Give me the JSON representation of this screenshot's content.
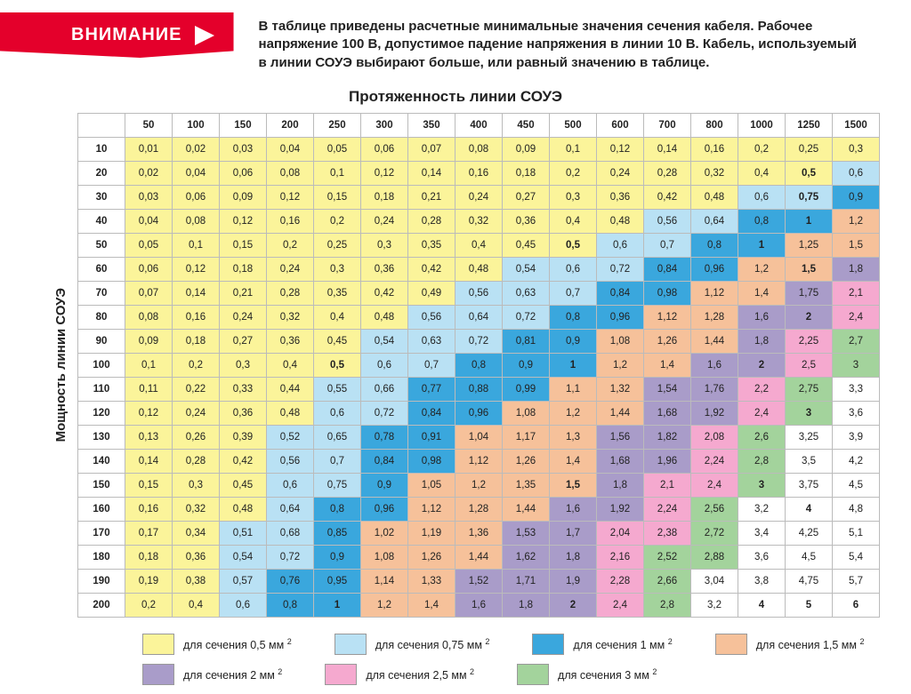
{
  "banner": {
    "label": "ВНИМАНИЕ",
    "text": "В таблице приведены расчетные минимальные значения сечения кабеля. Рабочее напряжение 100 В, допустимое падение напряжения в линии 10 В. Кабель, используемый в линии СОУЭ выбирают больше, или равный значению в таблице."
  },
  "chart": {
    "title": "Протяженность линии СОУЭ",
    "ylabel": "Мощность линии СОУЭ",
    "col_headers": [
      "50",
      "100",
      "150",
      "200",
      "250",
      "300",
      "350",
      "400",
      "450",
      "500",
      "600",
      "700",
      "800",
      "1000",
      "1250",
      "1500"
    ],
    "row_headers": [
      "10",
      "20",
      "30",
      "40",
      "50",
      "60",
      "70",
      "80",
      "90",
      "100",
      "110",
      "120",
      "130",
      "140",
      "150",
      "160",
      "170",
      "180",
      "190",
      "200"
    ],
    "colors": {
      "c05": "#fbf49a",
      "c075": "#b9e1f4",
      "c1": "#3aa7dd",
      "c15": "#f6c19a",
      "c2": "#a99cc9",
      "c25": "#f5a9cf",
      "c3": "#a3d39c",
      "cnone": "#ffffff"
    },
    "cells": [
      [
        [
          "0,01",
          "c05"
        ],
        [
          "0,02",
          "c05"
        ],
        [
          "0,03",
          "c05"
        ],
        [
          "0,04",
          "c05"
        ],
        [
          "0,05",
          "c05"
        ],
        [
          "0,06",
          "c05"
        ],
        [
          "0,07",
          "c05"
        ],
        [
          "0,08",
          "c05"
        ],
        [
          "0,09",
          "c05"
        ],
        [
          "0,1",
          "c05"
        ],
        [
          "0,12",
          "c05"
        ],
        [
          "0,14",
          "c05"
        ],
        [
          "0,16",
          "c05"
        ],
        [
          "0,2",
          "c05"
        ],
        [
          "0,25",
          "c05"
        ],
        [
          "0,3",
          "c05"
        ]
      ],
      [
        [
          "0,02",
          "c05"
        ],
        [
          "0,04",
          "c05"
        ],
        [
          "0,06",
          "c05"
        ],
        [
          "0,08",
          "c05"
        ],
        [
          "0,1",
          "c05"
        ],
        [
          "0,12",
          "c05"
        ],
        [
          "0,14",
          "c05"
        ],
        [
          "0,16",
          "c05"
        ],
        [
          "0,18",
          "c05"
        ],
        [
          "0,2",
          "c05"
        ],
        [
          "0,24",
          "c05"
        ],
        [
          "0,28",
          "c05"
        ],
        [
          "0,32",
          "c05"
        ],
        [
          "0,4",
          "c05"
        ],
        [
          "0,5",
          "c05",
          1
        ],
        [
          "0,6",
          "c075"
        ]
      ],
      [
        [
          "0,03",
          "c05"
        ],
        [
          "0,06",
          "c05"
        ],
        [
          "0,09",
          "c05"
        ],
        [
          "0,12",
          "c05"
        ],
        [
          "0,15",
          "c05"
        ],
        [
          "0,18",
          "c05"
        ],
        [
          "0,21",
          "c05"
        ],
        [
          "0,24",
          "c05"
        ],
        [
          "0,27",
          "c05"
        ],
        [
          "0,3",
          "c05"
        ],
        [
          "0,36",
          "c05"
        ],
        [
          "0,42",
          "c05"
        ],
        [
          "0,48",
          "c05"
        ],
        [
          "0,6",
          "c075"
        ],
        [
          "0,75",
          "c075",
          1
        ],
        [
          "0,9",
          "c1"
        ]
      ],
      [
        [
          "0,04",
          "c05"
        ],
        [
          "0,08",
          "c05"
        ],
        [
          "0,12",
          "c05"
        ],
        [
          "0,16",
          "c05"
        ],
        [
          "0,2",
          "c05"
        ],
        [
          "0,24",
          "c05"
        ],
        [
          "0,28",
          "c05"
        ],
        [
          "0,32",
          "c05"
        ],
        [
          "0,36",
          "c05"
        ],
        [
          "0,4",
          "c05"
        ],
        [
          "0,48",
          "c05"
        ],
        [
          "0,56",
          "c075"
        ],
        [
          "0,64",
          "c075"
        ],
        [
          "0,8",
          "c1"
        ],
        [
          "1",
          "c1",
          1
        ],
        [
          "1,2",
          "c15"
        ]
      ],
      [
        [
          "0,05",
          "c05"
        ],
        [
          "0,1",
          "c05"
        ],
        [
          "0,15",
          "c05"
        ],
        [
          "0,2",
          "c05"
        ],
        [
          "0,25",
          "c05"
        ],
        [
          "0,3",
          "c05"
        ],
        [
          "0,35",
          "c05"
        ],
        [
          "0,4",
          "c05"
        ],
        [
          "0,45",
          "c05"
        ],
        [
          "0,5",
          "c05",
          1
        ],
        [
          "0,6",
          "c075"
        ],
        [
          "0,7",
          "c075"
        ],
        [
          "0,8",
          "c1"
        ],
        [
          "1",
          "c1",
          1
        ],
        [
          "1,25",
          "c15"
        ],
        [
          "1,5",
          "c15"
        ]
      ],
      [
        [
          "0,06",
          "c05"
        ],
        [
          "0,12",
          "c05"
        ],
        [
          "0,18",
          "c05"
        ],
        [
          "0,24",
          "c05"
        ],
        [
          "0,3",
          "c05"
        ],
        [
          "0,36",
          "c05"
        ],
        [
          "0,42",
          "c05"
        ],
        [
          "0,48",
          "c05"
        ],
        [
          "0,54",
          "c075"
        ],
        [
          "0,6",
          "c075"
        ],
        [
          "0,72",
          "c075"
        ],
        [
          "0,84",
          "c1"
        ],
        [
          "0,96",
          "c1"
        ],
        [
          "1,2",
          "c15"
        ],
        [
          "1,5",
          "c15",
          1
        ],
        [
          "1,8",
          "c2"
        ]
      ],
      [
        [
          "0,07",
          "c05"
        ],
        [
          "0,14",
          "c05"
        ],
        [
          "0,21",
          "c05"
        ],
        [
          "0,28",
          "c05"
        ],
        [
          "0,35",
          "c05"
        ],
        [
          "0,42",
          "c05"
        ],
        [
          "0,49",
          "c05"
        ],
        [
          "0,56",
          "c075"
        ],
        [
          "0,63",
          "c075"
        ],
        [
          "0,7",
          "c075"
        ],
        [
          "0,84",
          "c1"
        ],
        [
          "0,98",
          "c1"
        ],
        [
          "1,12",
          "c15"
        ],
        [
          "1,4",
          "c15"
        ],
        [
          "1,75",
          "c2"
        ],
        [
          "2,1",
          "c25"
        ]
      ],
      [
        [
          "0,08",
          "c05"
        ],
        [
          "0,16",
          "c05"
        ],
        [
          "0,24",
          "c05"
        ],
        [
          "0,32",
          "c05"
        ],
        [
          "0,4",
          "c05"
        ],
        [
          "0,48",
          "c05"
        ],
        [
          "0,56",
          "c075"
        ],
        [
          "0,64",
          "c075"
        ],
        [
          "0,72",
          "c075"
        ],
        [
          "0,8",
          "c1"
        ],
        [
          "0,96",
          "c1"
        ],
        [
          "1,12",
          "c15"
        ],
        [
          "1,28",
          "c15"
        ],
        [
          "1,6",
          "c2"
        ],
        [
          "2",
          "c2",
          1
        ],
        [
          "2,4",
          "c25"
        ]
      ],
      [
        [
          "0,09",
          "c05"
        ],
        [
          "0,18",
          "c05"
        ],
        [
          "0,27",
          "c05"
        ],
        [
          "0,36",
          "c05"
        ],
        [
          "0,45",
          "c05"
        ],
        [
          "0,54",
          "c075"
        ],
        [
          "0,63",
          "c075"
        ],
        [
          "0,72",
          "c075"
        ],
        [
          "0,81",
          "c1"
        ],
        [
          "0,9",
          "c1"
        ],
        [
          "1,08",
          "c15"
        ],
        [
          "1,26",
          "c15"
        ],
        [
          "1,44",
          "c15"
        ],
        [
          "1,8",
          "c2"
        ],
        [
          "2,25",
          "c25"
        ],
        [
          "2,7",
          "c3"
        ]
      ],
      [
        [
          "0,1",
          "c05"
        ],
        [
          "0,2",
          "c05"
        ],
        [
          "0,3",
          "c05"
        ],
        [
          "0,4",
          "c05"
        ],
        [
          "0,5",
          "c05",
          1
        ],
        [
          "0,6",
          "c075"
        ],
        [
          "0,7",
          "c075"
        ],
        [
          "0,8",
          "c1"
        ],
        [
          "0,9",
          "c1"
        ],
        [
          "1",
          "c1",
          1
        ],
        [
          "1,2",
          "c15"
        ],
        [
          "1,4",
          "c15"
        ],
        [
          "1,6",
          "c2"
        ],
        [
          "2",
          "c2",
          1
        ],
        [
          "2,5",
          "c25"
        ],
        [
          "3",
          "c3"
        ]
      ],
      [
        [
          "0,11",
          "c05"
        ],
        [
          "0,22",
          "c05"
        ],
        [
          "0,33",
          "c05"
        ],
        [
          "0,44",
          "c05"
        ],
        [
          "0,55",
          "c075"
        ],
        [
          "0,66",
          "c075"
        ],
        [
          "0,77",
          "c1"
        ],
        [
          "0,88",
          "c1"
        ],
        [
          "0,99",
          "c1"
        ],
        [
          "1,1",
          "c15"
        ],
        [
          "1,32",
          "c15"
        ],
        [
          "1,54",
          "c2"
        ],
        [
          "1,76",
          "c2"
        ],
        [
          "2,2",
          "c25"
        ],
        [
          "2,75",
          "c3"
        ],
        [
          "3,3",
          "cnone"
        ]
      ],
      [
        [
          "0,12",
          "c05"
        ],
        [
          "0,24",
          "c05"
        ],
        [
          "0,36",
          "c05"
        ],
        [
          "0,48",
          "c05"
        ],
        [
          "0,6",
          "c075"
        ],
        [
          "0,72",
          "c075"
        ],
        [
          "0,84",
          "c1"
        ],
        [
          "0,96",
          "c1"
        ],
        [
          "1,08",
          "c15"
        ],
        [
          "1,2",
          "c15"
        ],
        [
          "1,44",
          "c15"
        ],
        [
          "1,68",
          "c2"
        ],
        [
          "1,92",
          "c2"
        ],
        [
          "2,4",
          "c25"
        ],
        [
          "3",
          "c3",
          1
        ],
        [
          "3,6",
          "cnone"
        ]
      ],
      [
        [
          "0,13",
          "c05"
        ],
        [
          "0,26",
          "c05"
        ],
        [
          "0,39",
          "c05"
        ],
        [
          "0,52",
          "c075"
        ],
        [
          "0,65",
          "c075"
        ],
        [
          "0,78",
          "c1"
        ],
        [
          "0,91",
          "c1"
        ],
        [
          "1,04",
          "c15"
        ],
        [
          "1,17",
          "c15"
        ],
        [
          "1,3",
          "c15"
        ],
        [
          "1,56",
          "c2"
        ],
        [
          "1,82",
          "c2"
        ],
        [
          "2,08",
          "c25"
        ],
        [
          "2,6",
          "c3"
        ],
        [
          "3,25",
          "cnone"
        ],
        [
          "3,9",
          "cnone"
        ]
      ],
      [
        [
          "0,14",
          "c05"
        ],
        [
          "0,28",
          "c05"
        ],
        [
          "0,42",
          "c05"
        ],
        [
          "0,56",
          "c075"
        ],
        [
          "0,7",
          "c075"
        ],
        [
          "0,84",
          "c1"
        ],
        [
          "0,98",
          "c1"
        ],
        [
          "1,12",
          "c15"
        ],
        [
          "1,26",
          "c15"
        ],
        [
          "1,4",
          "c15"
        ],
        [
          "1,68",
          "c2"
        ],
        [
          "1,96",
          "c2"
        ],
        [
          "2,24",
          "c25"
        ],
        [
          "2,8",
          "c3"
        ],
        [
          "3,5",
          "cnone"
        ],
        [
          "4,2",
          "cnone"
        ]
      ],
      [
        [
          "0,15",
          "c05"
        ],
        [
          "0,3",
          "c05"
        ],
        [
          "0,45",
          "c05"
        ],
        [
          "0,6",
          "c075"
        ],
        [
          "0,75",
          "c075"
        ],
        [
          "0,9",
          "c1"
        ],
        [
          "1,05",
          "c15"
        ],
        [
          "1,2",
          "c15"
        ],
        [
          "1,35",
          "c15"
        ],
        [
          "1,5",
          "c15",
          1
        ],
        [
          "1,8",
          "c2"
        ],
        [
          "2,1",
          "c25"
        ],
        [
          "2,4",
          "c25"
        ],
        [
          "3",
          "c3",
          1
        ],
        [
          "3,75",
          "cnone"
        ],
        [
          "4,5",
          "cnone"
        ]
      ],
      [
        [
          "0,16",
          "c05"
        ],
        [
          "0,32",
          "c05"
        ],
        [
          "0,48",
          "c05"
        ],
        [
          "0,64",
          "c075"
        ],
        [
          "0,8",
          "c1"
        ],
        [
          "0,96",
          "c1"
        ],
        [
          "1,12",
          "c15"
        ],
        [
          "1,28",
          "c15"
        ],
        [
          "1,44",
          "c15"
        ],
        [
          "1,6",
          "c2"
        ],
        [
          "1,92",
          "c2"
        ],
        [
          "2,24",
          "c25"
        ],
        [
          "2,56",
          "c3"
        ],
        [
          "3,2",
          "cnone"
        ],
        [
          "4",
          "cnone",
          1
        ],
        [
          "4,8",
          "cnone"
        ]
      ],
      [
        [
          "0,17",
          "c05"
        ],
        [
          "0,34",
          "c05"
        ],
        [
          "0,51",
          "c075"
        ],
        [
          "0,68",
          "c075"
        ],
        [
          "0,85",
          "c1"
        ],
        [
          "1,02",
          "c15"
        ],
        [
          "1,19",
          "c15"
        ],
        [
          "1,36",
          "c15"
        ],
        [
          "1,53",
          "c2"
        ],
        [
          "1,7",
          "c2"
        ],
        [
          "2,04",
          "c25"
        ],
        [
          "2,38",
          "c25"
        ],
        [
          "2,72",
          "c3"
        ],
        [
          "3,4",
          "cnone"
        ],
        [
          "4,25",
          "cnone"
        ],
        [
          "5,1",
          "cnone"
        ]
      ],
      [
        [
          "0,18",
          "c05"
        ],
        [
          "0,36",
          "c05"
        ],
        [
          "0,54",
          "c075"
        ],
        [
          "0,72",
          "c075"
        ],
        [
          "0,9",
          "c1"
        ],
        [
          "1,08",
          "c15"
        ],
        [
          "1,26",
          "c15"
        ],
        [
          "1,44",
          "c15"
        ],
        [
          "1,62",
          "c2"
        ],
        [
          "1,8",
          "c2"
        ],
        [
          "2,16",
          "c25"
        ],
        [
          "2,52",
          "c3"
        ],
        [
          "2,88",
          "c3"
        ],
        [
          "3,6",
          "cnone"
        ],
        [
          "4,5",
          "cnone"
        ],
        [
          "5,4",
          "cnone"
        ]
      ],
      [
        [
          "0,19",
          "c05"
        ],
        [
          "0,38",
          "c05"
        ],
        [
          "0,57",
          "c075"
        ],
        [
          "0,76",
          "c1"
        ],
        [
          "0,95",
          "c1"
        ],
        [
          "1,14",
          "c15"
        ],
        [
          "1,33",
          "c15"
        ],
        [
          "1,52",
          "c2"
        ],
        [
          "1,71",
          "c2"
        ],
        [
          "1,9",
          "c2"
        ],
        [
          "2,28",
          "c25"
        ],
        [
          "2,66",
          "c3"
        ],
        [
          "3,04",
          "cnone"
        ],
        [
          "3,8",
          "cnone"
        ],
        [
          "4,75",
          "cnone"
        ],
        [
          "5,7",
          "cnone"
        ]
      ],
      [
        [
          "0,2",
          "c05"
        ],
        [
          "0,4",
          "c05"
        ],
        [
          "0,6",
          "c075"
        ],
        [
          "0,8",
          "c1"
        ],
        [
          "1",
          "c1",
          1
        ],
        [
          "1,2",
          "c15"
        ],
        [
          "1,4",
          "c15"
        ],
        [
          "1,6",
          "c2"
        ],
        [
          "1,8",
          "c2"
        ],
        [
          "2",
          "c2",
          1
        ],
        [
          "2,4",
          "c25"
        ],
        [
          "2,8",
          "c3"
        ],
        [
          "3,2",
          "cnone"
        ],
        [
          "4",
          "cnone",
          1
        ],
        [
          "5",
          "cnone",
          1
        ],
        [
          "6",
          "cnone",
          1
        ]
      ]
    ]
  },
  "legend": [
    [
      [
        "c05",
        "для сечения 0,5 мм"
      ],
      [
        "c075",
        "для сечения 0,75 мм"
      ],
      [
        "c1",
        "для сечения 1 мм"
      ],
      [
        "c15",
        "для сечения 1,5 мм"
      ]
    ],
    [
      [
        "c2",
        "для сечения 2 мм"
      ],
      [
        "c25",
        "для сечения 2,5 мм"
      ],
      [
        "c3",
        "для сечения 3 мм"
      ]
    ]
  ]
}
